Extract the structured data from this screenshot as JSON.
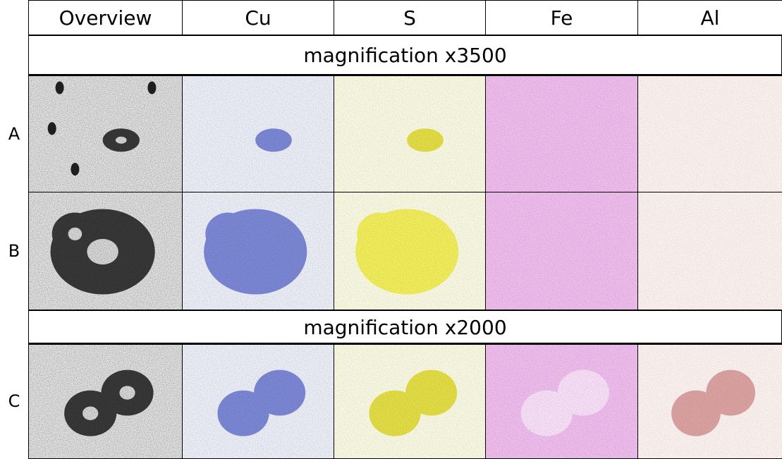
{
  "table": {
    "columns": [
      "Overview",
      "Cu",
      "S",
      "Fe",
      "Al"
    ],
    "sections": [
      {
        "title": "magnification x3500",
        "rows": [
          {
            "label": "A"
          },
          {
            "label": "B"
          }
        ]
      },
      {
        "title": "magnification x2000",
        "rows": [
          {
            "label": "C"
          }
        ]
      }
    ]
  }
}
